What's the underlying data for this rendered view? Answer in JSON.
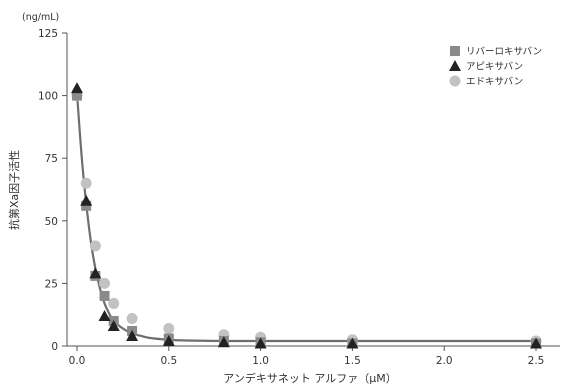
{
  "chart_data": {
    "type": "scatter",
    "y_unit": "(ng/mL)",
    "ylabel": "抗第Xa因子活性",
    "xlabel": "アンデキサネット アルファ（μM）",
    "xlim": [
      0,
      2.5
    ],
    "ylim": [
      0,
      125
    ],
    "x_ticks": [
      "0.0",
      "0.5",
      "1.0",
      "1.5",
      "2.0",
      "2.5"
    ],
    "y_ticks": [
      "0",
      "25",
      "50",
      "75",
      "100",
      "125"
    ],
    "legend_position": "top-right",
    "series": [
      {
        "name": "リバーロキサバン",
        "marker": "square",
        "color": "#8a8a8a",
        "x": [
          0.0,
          0.05,
          0.1,
          0.15,
          0.2,
          0.3,
          0.5,
          0.8,
          1.0,
          1.5,
          2.5
        ],
        "y": [
          100,
          56,
          28,
          20,
          10,
          6,
          3,
          2,
          1.5,
          1,
          1
        ]
      },
      {
        "name": "アピキサバン",
        "marker": "triangle",
        "color": "#222222",
        "x": [
          0.0,
          0.05,
          0.1,
          0.15,
          0.2,
          0.3,
          0.5,
          0.8,
          1.0,
          1.5,
          2.5
        ],
        "y": [
          103,
          58,
          29,
          12,
          8,
          4,
          2,
          1.5,
          1,
          1,
          1
        ]
      },
      {
        "name": "エドキサバン",
        "marker": "circle",
        "color": "#c2c2c2",
        "x": [
          0.0,
          0.05,
          0.1,
          0.15,
          0.2,
          0.3,
          0.5,
          0.8,
          1.0,
          1.5,
          2.5
        ],
        "y": [
          100,
          65,
          40,
          25,
          17,
          11,
          7,
          4.5,
          3.5,
          2.5,
          2
        ]
      }
    ],
    "fit_curve": {
      "color": "#6e6e6e",
      "x": [
        0.0,
        0.025,
        0.05,
        0.075,
        0.1,
        0.125,
        0.15,
        0.175,
        0.2,
        0.25,
        0.3,
        0.35,
        0.4,
        0.5,
        0.6,
        0.8,
        1.0,
        1.5,
        2.0,
        2.5
      ],
      "y": [
        101,
        76,
        57,
        42,
        31,
        23,
        17,
        13,
        10,
        7,
        5,
        4,
        3.2,
        2.5,
        2.2,
        2,
        2,
        2,
        2,
        2
      ]
    }
  }
}
